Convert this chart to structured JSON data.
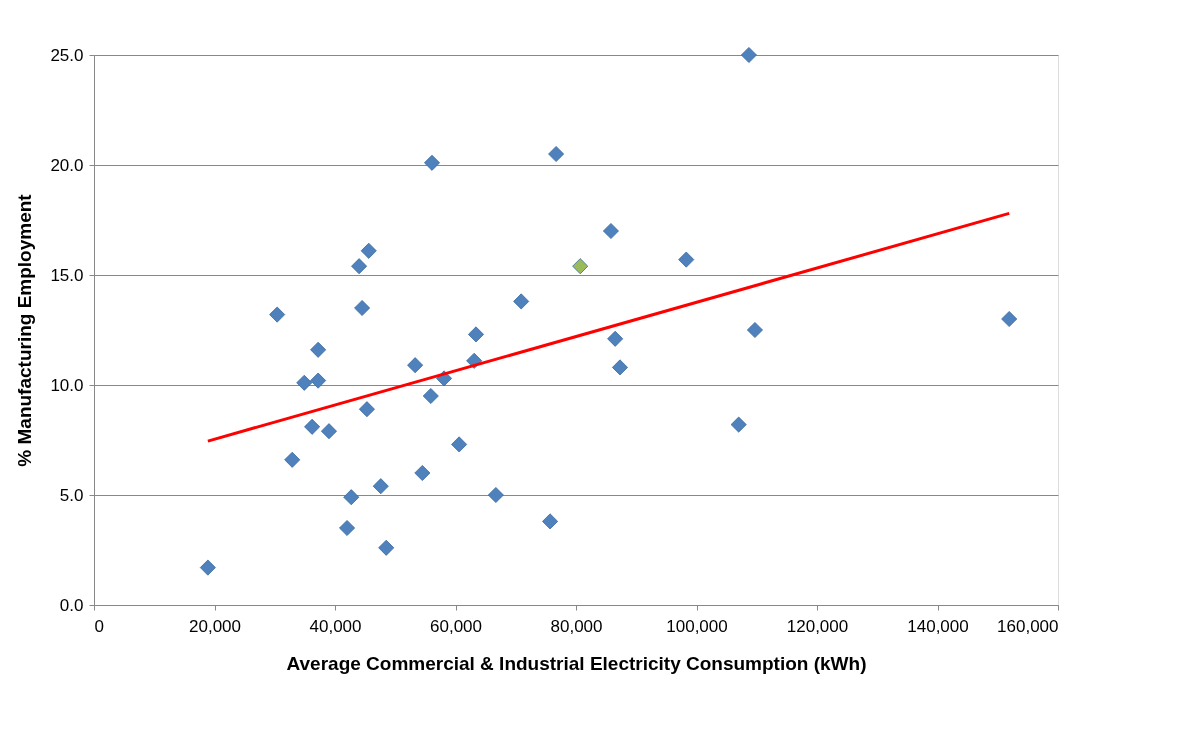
{
  "chart_data": {
    "type": "scatter",
    "xlabel": "Average Commercial & Industrial Electricity Consumption (kWh)",
    "ylabel": "% Manufacturing Employment",
    "xlim": [
      0,
      160000
    ],
    "ylim": [
      0,
      25
    ],
    "xticks": [
      0,
      {
        "value": 20000,
        "label": "20,000"
      },
      {
        "value": 40000,
        "label": "40,000"
      },
      {
        "value": 60000,
        "label": "60,000"
      },
      {
        "value": 80000,
        "label": "80,000"
      },
      {
        "value": 100000,
        "label": "100,000"
      },
      {
        "value": 120000,
        "label": "120,000"
      },
      {
        "value": 140000,
        "label": "140,000"
      },
      {
        "value": 160000,
        "label": "160,000"
      }
    ],
    "yticks": [
      {
        "value": 0,
        "label": "0.0"
      },
      {
        "value": 5,
        "label": "5.0"
      },
      {
        "value": 10,
        "label": "10.0"
      },
      {
        "value": 15,
        "label": "15.0"
      },
      {
        "value": 20,
        "label": "20.0"
      },
      {
        "value": 25,
        "label": "25.0"
      }
    ],
    "grid": "y",
    "legend": false,
    "marker": "diamond",
    "series": [
      {
        "color": "#4f81bd",
        "x": [
          18900,
          30400,
          32900,
          34900,
          36200,
          37200,
          37200,
          39000,
          42000,
          42700,
          44000,
          44500,
          45300,
          45600,
          47600,
          48500,
          53300,
          54500,
          55900,
          56100,
          58100,
          60600,
          63100,
          63400,
          66700,
          70900,
          75700,
          76700,
          85800,
          86500,
          87300,
          98300,
          107000,
          108700,
          109700,
          151900
        ],
        "values": [
          1.7,
          13.2,
          6.6,
          10.1,
          8.1,
          10.2,
          11.6,
          7.9,
          3.5,
          4.9,
          15.4,
          13.5,
          8.9,
          16.1,
          5.4,
          2.6,
          10.9,
          6.0,
          9.5,
          20.1,
          10.3,
          7.3,
          11.1,
          12.3,
          5.0,
          13.8,
          3.8,
          20.5,
          17.0,
          12.1,
          10.8,
          15.7,
          8.2,
          25.0,
          12.5,
          13.0
        ]
      },
      {
        "color": "#9bbb59",
        "x": [
          80700
        ],
        "values": [
          15.4
        ]
      },
      {
        "type": "line",
        "marker": "none",
        "color": "#ff0000",
        "x": [
          18900,
          151900
        ],
        "values": [
          7.45,
          17.8
        ]
      }
    ]
  }
}
